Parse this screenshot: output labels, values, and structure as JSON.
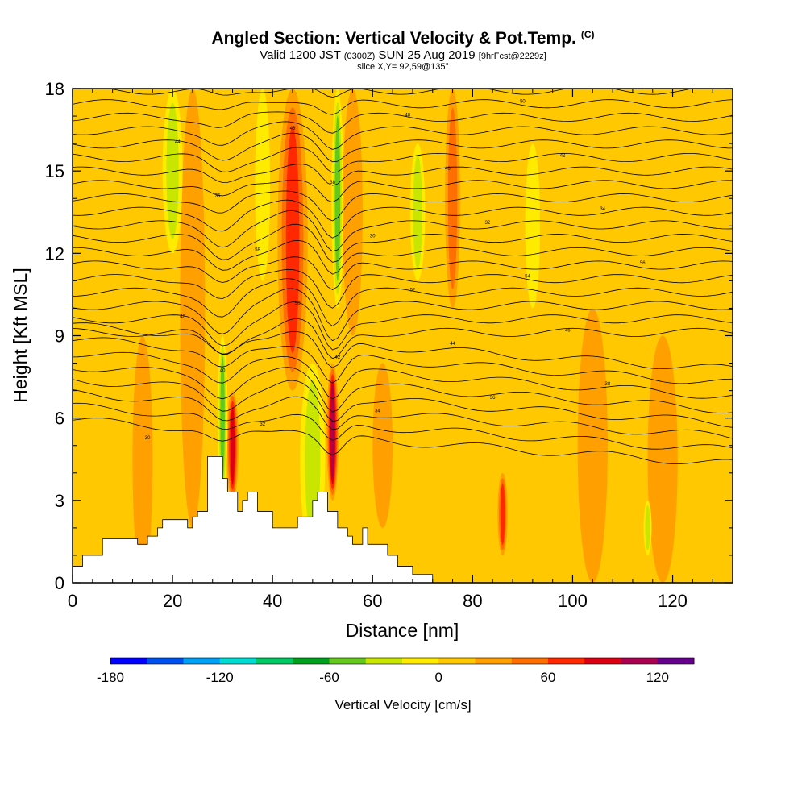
{
  "header": {
    "title": "Angled Section: Vertical Velocity & Pot.Temp.",
    "title_tag": "(C)",
    "valid_prefix": "Valid 1200 JST",
    "valid_utc": "(0300Z)",
    "valid_date": "SUN 25 Aug 2019",
    "forecast": "[9hrFcst@2229z]",
    "slice": "slice X,Y= 92,59@135°"
  },
  "chart_data": {
    "type": "heatmap",
    "xlabel": "Distance [nm]",
    "ylabel": "Height [Kft MSL]",
    "xlim": [
      0,
      132
    ],
    "ylim": [
      0,
      18
    ],
    "x_ticks": [
      0,
      20,
      40,
      60,
      80,
      100,
      120
    ],
    "y_ticks": [
      0,
      3,
      6,
      9,
      12,
      15,
      18
    ],
    "field": "Vertical Velocity [cm/s]",
    "background_value": 5,
    "updraft_bands": [
      {
        "x": 14,
        "z": [
          0,
          9
        ],
        "w": 2,
        "value": 20
      },
      {
        "x": 24,
        "z": [
          2,
          18
        ],
        "w": 2.5,
        "value": 30
      },
      {
        "x": 32,
        "z": [
          3,
          7
        ],
        "w": 1.2,
        "value": 80
      },
      {
        "x": 44,
        "z": [
          7,
          18
        ],
        "w": 3,
        "value": 55
      },
      {
        "x": 52,
        "z": [
          3,
          8
        ],
        "w": 1.2,
        "value": 95
      },
      {
        "x": 56,
        "z": [
          9,
          18
        ],
        "w": 2,
        "value": 30
      },
      {
        "x": 62,
        "z": [
          2,
          8
        ],
        "w": 2,
        "value": 25
      },
      {
        "x": 76,
        "z": [
          10,
          18
        ],
        "w": 1.5,
        "value": 40
      },
      {
        "x": 86,
        "z": [
          1,
          4
        ],
        "w": 1,
        "value": 55
      },
      {
        "x": 104,
        "z": [
          0,
          10
        ],
        "w": 3,
        "value": 15
      },
      {
        "x": 118,
        "z": [
          0,
          9
        ],
        "w": 3,
        "value": 15
      }
    ],
    "downdraft_bands": [
      {
        "x": 20,
        "z": [
          12,
          18
        ],
        "w": 2,
        "value": -30
      },
      {
        "x": 30,
        "z": [
          3,
          9
        ],
        "w": 1,
        "value": -55
      },
      {
        "x": 38,
        "z": [
          11,
          18
        ],
        "w": 1.5,
        "value": -20
      },
      {
        "x": 48,
        "z": [
          1,
          8
        ],
        "w": 2.5,
        "value": -30
      },
      {
        "x": 53,
        "z": [
          10,
          18
        ],
        "w": 1.2,
        "value": -45
      },
      {
        "x": 69,
        "z": [
          11,
          16
        ],
        "w": 1.5,
        "value": -25
      },
      {
        "x": 92,
        "z": [
          10,
          16
        ],
        "w": 1.5,
        "value": -15
      },
      {
        "x": 115,
        "z": [
          1,
          3
        ],
        "w": 0.8,
        "value": -25
      }
    ],
    "terrain": [
      [
        0,
        0.6
      ],
      [
        2,
        0.6
      ],
      [
        2,
        1.0
      ],
      [
        6,
        1.0
      ],
      [
        6,
        1.6
      ],
      [
        13,
        1.6
      ],
      [
        13,
        1.4
      ],
      [
        15,
        1.4
      ],
      [
        15,
        1.7
      ],
      [
        17,
        1.7
      ],
      [
        17,
        2.0
      ],
      [
        18,
        2.0
      ],
      [
        18,
        2.3
      ],
      [
        23,
        2.3
      ],
      [
        23,
        2.0
      ],
      [
        24,
        2.0
      ],
      [
        24,
        2.4
      ],
      [
        25,
        2.4
      ],
      [
        25,
        2.6
      ],
      [
        27,
        2.6
      ],
      [
        27,
        4.6
      ],
      [
        30,
        4.6
      ],
      [
        30,
        3.8
      ],
      [
        31,
        3.8
      ],
      [
        31,
        3.3
      ],
      [
        33,
        3.3
      ],
      [
        33,
        2.6
      ],
      [
        34,
        2.6
      ],
      [
        34,
        3.0
      ],
      [
        35,
        3.0
      ],
      [
        35,
        3.3
      ],
      [
        37,
        3.3
      ],
      [
        37,
        2.6
      ],
      [
        40,
        2.6
      ],
      [
        40,
        2.0
      ],
      [
        45,
        2.0
      ],
      [
        45,
        2.4
      ],
      [
        48,
        2.4
      ],
      [
        48,
        3.0
      ],
      [
        49,
        3.0
      ],
      [
        49,
        3.3
      ],
      [
        51,
        3.3
      ],
      [
        51,
        2.6
      ],
      [
        53,
        2.6
      ],
      [
        53,
        2.0
      ],
      [
        55,
        2.0
      ],
      [
        55,
        1.7
      ],
      [
        56,
        1.7
      ],
      [
        56,
        1.4
      ],
      [
        58,
        1.4
      ],
      [
        58,
        2.0
      ],
      [
        59,
        2.0
      ],
      [
        59,
        1.4
      ],
      [
        63,
        1.4
      ],
      [
        63,
        1.0
      ],
      [
        65,
        1.0
      ],
      [
        65,
        0.6
      ],
      [
        68,
        0.6
      ],
      [
        68,
        0.3
      ],
      [
        72,
        0.3
      ],
      [
        72,
        0.0
      ]
    ],
    "theta_contours": {
      "count": 27,
      "base": 5.2,
      "spacing": 0.49,
      "label_values": [
        "30",
        "32",
        "34",
        "36",
        "38",
        "40",
        "42",
        "44",
        "46",
        "48",
        "50",
        "52",
        "54",
        "56",
        "58"
      ]
    },
    "colorbar": {
      "label": "Vertical Velocity [cm/s]",
      "min": -180,
      "max": 140,
      "step": 20,
      "tick_values": [
        -180,
        -120,
        -60,
        0,
        60,
        120
      ],
      "tick_labels": [
        "-180",
        "-120",
        "-60",
        "0",
        "60",
        "120"
      ],
      "colors": [
        "#0000ff",
        "#0050f0",
        "#00a0f5",
        "#00dcd2",
        "#00c864",
        "#00a01e",
        "#64c81e",
        "#c8e600",
        "#ffeb00",
        "#ffc800",
        "#ffa000",
        "#ff6e00",
        "#ff2800",
        "#dc0014",
        "#aa0050",
        "#64008c"
      ]
    }
  }
}
